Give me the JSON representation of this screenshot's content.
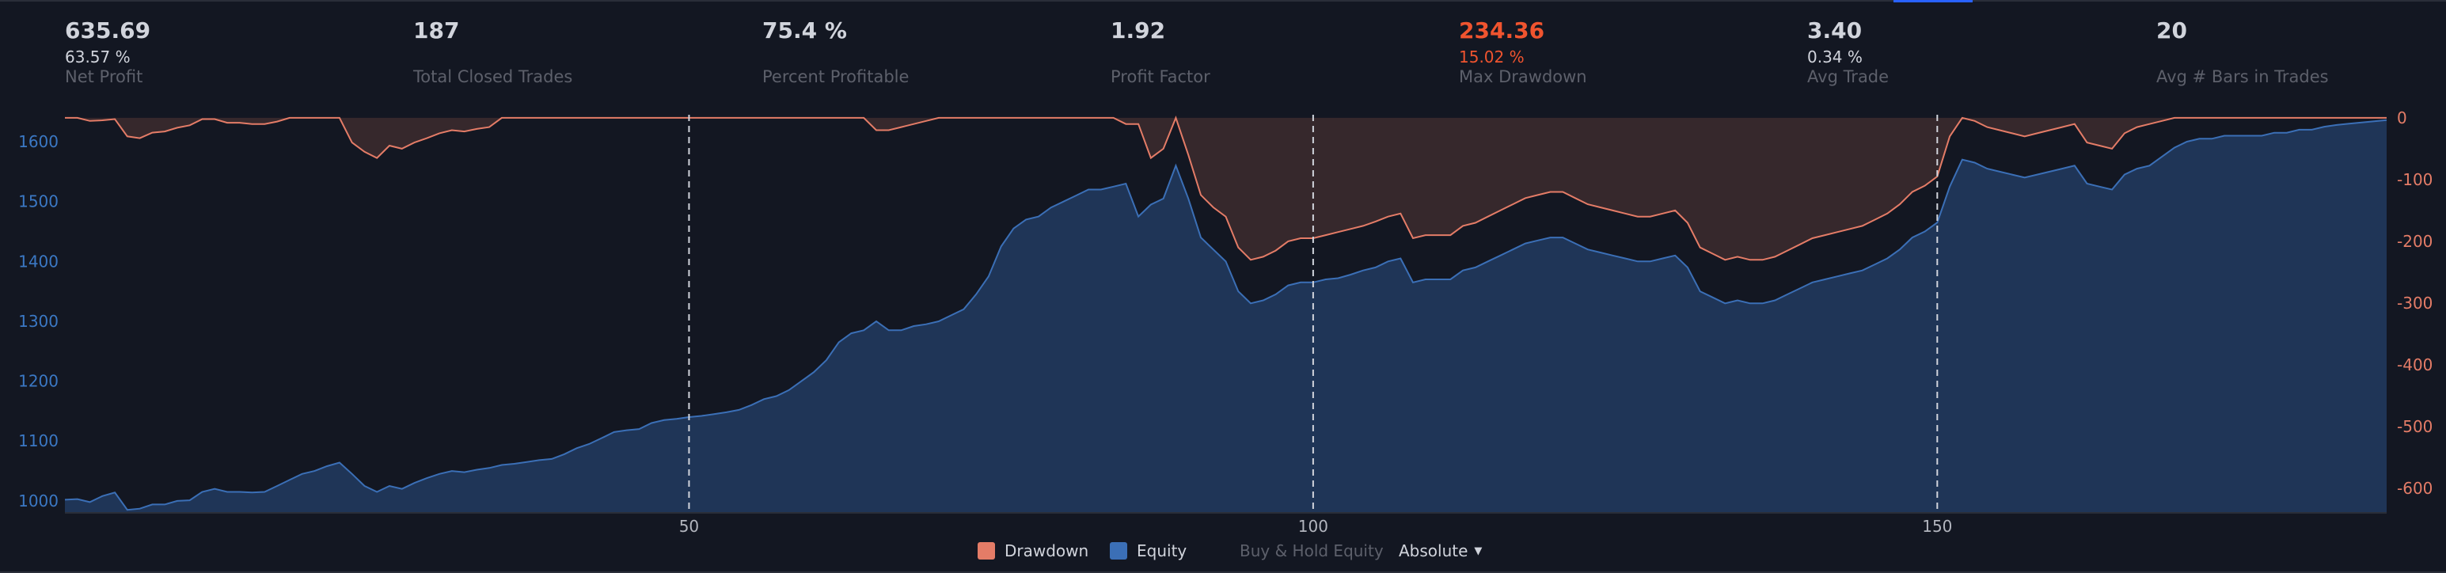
{
  "stats": [
    {
      "value": "635.69",
      "sub": "63.57 %",
      "label": "Net Profit",
      "red": false
    },
    {
      "value": "187",
      "sub": "",
      "label": "Total Closed Trades",
      "red": false
    },
    {
      "value": "75.4 %",
      "sub": "",
      "label": "Percent Profitable",
      "red": false
    },
    {
      "value": "1.92",
      "sub": "",
      "label": "Profit Factor",
      "red": false
    },
    {
      "value": "234.36",
      "sub": "15.02 %",
      "label": "Max Drawdown",
      "red": true
    },
    {
      "value": "3.40",
      "sub": "0.34 %",
      "label": "Avg Trade",
      "red": false
    },
    {
      "value": "20",
      "sub": "",
      "label": "Avg # Bars in Trades",
      "red": false
    }
  ],
  "legend": {
    "drawdown": "Drawdown",
    "equity": "Equity",
    "buy_hold": "Buy & Hold Equity",
    "mode": "Absolute"
  },
  "colors": {
    "equity": "#3b6fb6",
    "equity_fill": "#1f3557",
    "drawdown": "#e47c67",
    "drawdown_fill": "#3a2a2e",
    "left_axis": "#3b78c4",
    "right_axis": "#e47c67"
  },
  "chart_data": {
    "type": "area",
    "x": [
      0,
      1,
      2,
      3,
      4,
      5,
      6,
      7,
      8,
      9,
      10,
      11,
      12,
      13,
      14,
      15,
      16,
      17,
      18,
      19,
      20,
      21,
      22,
      23,
      24,
      25,
      26,
      27,
      28,
      29,
      30,
      31,
      32,
      33,
      34,
      35,
      36,
      37,
      38,
      39,
      40,
      41,
      42,
      43,
      44,
      45,
      46,
      47,
      48,
      49,
      50,
      51,
      52,
      53,
      54,
      55,
      56,
      57,
      58,
      59,
      60,
      61,
      62,
      63,
      64,
      65,
      66,
      67,
      68,
      69,
      70,
      71,
      72,
      73,
      74,
      75,
      76,
      77,
      78,
      79,
      80,
      81,
      82,
      83,
      84,
      85,
      86,
      87,
      88,
      89,
      90,
      91,
      92,
      93,
      94,
      95,
      96,
      97,
      98,
      99,
      100,
      101,
      102,
      103,
      104,
      105,
      106,
      107,
      108,
      109,
      110,
      111,
      112,
      113,
      114,
      115,
      116,
      117,
      118,
      119,
      120,
      121,
      122,
      123,
      124,
      125,
      126,
      127,
      128,
      129,
      130,
      131,
      132,
      133,
      134,
      135,
      136,
      137,
      138,
      139,
      140,
      141,
      142,
      143,
      144,
      145,
      146,
      147,
      148,
      149,
      150,
      151,
      152,
      153,
      154,
      155,
      156,
      157,
      158,
      159,
      160,
      161,
      162,
      163,
      164,
      165,
      166,
      167,
      168,
      169,
      170,
      171,
      172,
      173,
      174,
      175,
      176,
      177,
      178,
      179,
      180,
      181,
      182,
      183,
      184,
      185,
      186
    ],
    "series": [
      {
        "name": "Equity",
        "axis": "left",
        "values": [
          1002,
          1003,
          998,
          1008,
          1014,
          985,
          987,
          994,
          994,
          1000,
          1001,
          1015,
          1020,
          1015,
          1015,
          1014,
          1015,
          1025,
          1035,
          1045,
          1050,
          1058,
          1064,
          1045,
          1025,
          1015,
          1025,
          1020,
          1030,
          1038,
          1045,
          1050,
          1048,
          1052,
          1055,
          1060,
          1062,
          1065,
          1068,
          1070,
          1078,
          1088,
          1095,
          1105,
          1115,
          1118,
          1120,
          1130,
          1135,
          1137,
          1140,
          1142,
          1145,
          1148,
          1152,
          1160,
          1170,
          1175,
          1185,
          1200,
          1215,
          1235,
          1265,
          1280,
          1285,
          1300,
          1285,
          1285,
          1292,
          1295,
          1300,
          1310,
          1320,
          1345,
          1375,
          1425,
          1455,
          1470,
          1475,
          1490,
          1500,
          1510,
          1520,
          1520,
          1525,
          1530,
          1475,
          1495,
          1505,
          1560,
          1505,
          1440,
          1420,
          1400,
          1350,
          1330,
          1335,
          1345,
          1360,
          1365,
          1365,
          1370,
          1372,
          1378,
          1385,
          1390,
          1400,
          1405,
          1365,
          1370,
          1370,
          1370,
          1385,
          1390,
          1400,
          1410,
          1420,
          1430,
          1435,
          1440,
          1440,
          1430,
          1420,
          1415,
          1410,
          1405,
          1400,
          1400,
          1405,
          1410,
          1390,
          1350,
          1340,
          1330,
          1335,
          1330,
          1330,
          1335,
          1345,
          1355,
          1365,
          1370,
          1375,
          1380,
          1385,
          1395,
          1405,
          1420,
          1440,
          1450,
          1465,
          1525,
          1570,
          1565,
          1555,
          1550,
          1545,
          1540,
          1545,
          1550,
          1555,
          1560,
          1530,
          1525,
          1520,
          1545,
          1555,
          1560,
          1575,
          1590,
          1600,
          1605,
          1605,
          1610,
          1610,
          1610,
          1610,
          1615,
          1615,
          1620,
          1620,
          1625,
          1628,
          1630,
          1632,
          1634,
          1636
        ]
      },
      {
        "name": "Drawdown",
        "axis": "right",
        "values": [
          0,
          0,
          -5,
          -4,
          -2,
          -30,
          -33,
          -24,
          -22,
          -16,
          -12,
          -2,
          -2,
          -8,
          -8,
          -10,
          -10,
          -6,
          0,
          0,
          0,
          0,
          0,
          -40,
          -55,
          -65,
          -45,
          -50,
          -40,
          -33,
          -25,
          -20,
          -22,
          -18,
          -15,
          0,
          0,
          0,
          0,
          0,
          0,
          0,
          0,
          0,
          0,
          0,
          0,
          0,
          0,
          0,
          0,
          0,
          0,
          0,
          0,
          0,
          0,
          0,
          0,
          0,
          0,
          0,
          0,
          0,
          0,
          -20,
          -20,
          -15,
          -10,
          -5,
          0,
          0,
          0,
          0,
          0,
          0,
          0,
          0,
          0,
          0,
          0,
          0,
          0,
          0,
          0,
          -10,
          -10,
          -65,
          -50,
          0,
          -60,
          -125,
          -145,
          -160,
          -210,
          -230,
          -225,
          -215,
          -200,
          -195,
          -195,
          -190,
          -185,
          -180,
          -175,
          -168,
          -160,
          -155,
          -195,
          -190,
          -190,
          -190,
          -175,
          -170,
          -160,
          -150,
          -140,
          -130,
          -125,
          -120,
          -120,
          -130,
          -140,
          -145,
          -150,
          -155,
          -160,
          -160,
          -155,
          -150,
          -170,
          -210,
          -220,
          -230,
          -225,
          -230,
          -230,
          -225,
          -215,
          -205,
          -195,
          -190,
          -185,
          -180,
          -175,
          -165,
          -155,
          -140,
          -120,
          -110,
          -95,
          -30,
          0,
          -5,
          -15,
          -20,
          -25,
          -30,
          -25,
          -20,
          -15,
          -10,
          -40,
          -45,
          -50,
          -25,
          -15,
          -10,
          -5,
          0,
          0,
          0,
          0,
          0,
          0,
          0,
          0,
          0,
          0,
          0,
          0,
          0,
          0,
          0,
          0,
          0,
          0
        ]
      }
    ],
    "x_ticks": [
      50,
      100,
      150
    ],
    "xlim": [
      0,
      186
    ],
    "y_left_ticks": [
      1000,
      1100,
      1200,
      1300,
      1400,
      1500,
      1600
    ],
    "y_left_lim": [
      980,
      1645
    ],
    "y_right_ticks": [
      0,
      -100,
      -200,
      -300,
      -400,
      -500,
      -600
    ],
    "y_right_lim": [
      -640,
      5
    ],
    "vlines": [
      50,
      100,
      150
    ],
    "grid": false,
    "legend_placement": "bottom-center"
  }
}
